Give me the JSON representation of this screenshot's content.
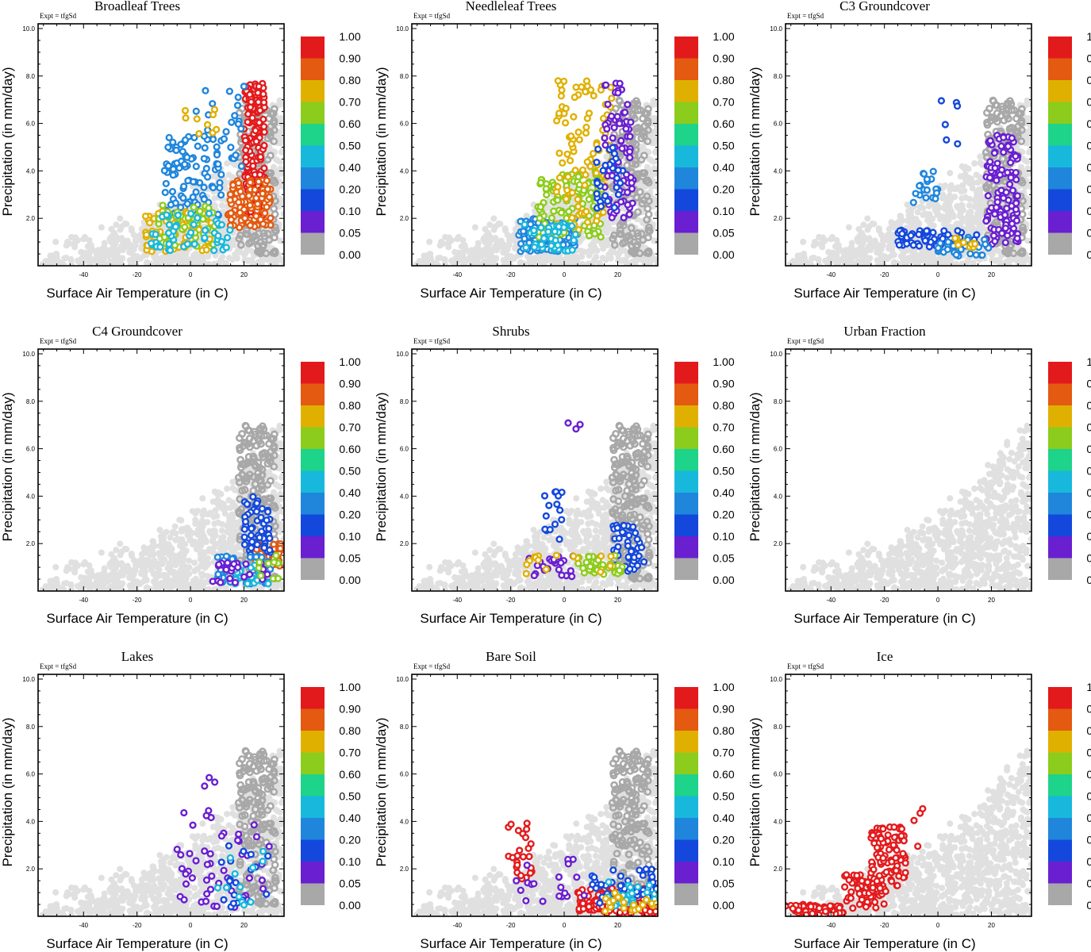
{
  "figure": {
    "expt_label": "Expt = tfgSd"
  },
  "colorbar": {
    "labels": [
      "1.00",
      "0.90",
      "0.80",
      "0.70",
      "0.60",
      "0.50",
      "0.40",
      "0.20",
      "0.10",
      "0.05",
      "0.00"
    ],
    "colors": [
      "#e31a1c",
      "#e35a10",
      "#e0b000",
      "#8ccc1c",
      "#1ed38a",
      "#18b8dc",
      "#1f86dc",
      "#1448dc",
      "#6a1fd0",
      "#a8a8a8"
    ]
  },
  "chart_data": [
    {
      "type": "scatter",
      "title": "Broadleaf Trees",
      "xlabel": "Surface Air Temperature (in C)",
      "ylabel": "Precipitation (in mm/day)",
      "xlim": [
        -57,
        35
      ],
      "ylim": [
        0,
        10.2
      ],
      "xticks": [
        -40,
        -20,
        0,
        20
      ],
      "yticks": [
        2.0,
        4.0,
        6.0,
        8.0,
        10.0
      ],
      "clusters": [
        {
          "color": "#e31a1c",
          "x": [
            20,
            28
          ],
          "y": [
            1.8,
            7.7
          ],
          "n": 180
        },
        {
          "color": "#e35a10",
          "x": [
            14,
            30
          ],
          "y": [
            1.6,
            3.6
          ],
          "n": 90
        },
        {
          "color": "#1f86dc",
          "x": [
            -10,
            12
          ],
          "y": [
            2.0,
            5.5
          ],
          "n": 90
        },
        {
          "color": "#e0b000",
          "x": [
            -17,
            8
          ],
          "y": [
            0.6,
            2.3
          ],
          "n": 90
        },
        {
          "color": "#8ccc1c",
          "x": [
            -12,
            10
          ],
          "y": [
            0.8,
            2.6
          ],
          "n": 50
        },
        {
          "color": "#18b8dc",
          "x": [
            -15,
            15
          ],
          "y": [
            0.6,
            2.2
          ],
          "n": 50
        },
        {
          "color": "#1f86dc",
          "x": [
            2,
            20
          ],
          "y": [
            4.0,
            7.8
          ],
          "n": 25
        },
        {
          "color": "#e0b000",
          "x": [
            -2,
            10
          ],
          "y": [
            5.5,
            7.0
          ],
          "n": 10
        }
      ]
    },
    {
      "type": "scatter",
      "title": "Needleleaf Trees",
      "xlabel": "Surface Air Temperature (in C)",
      "ylabel": "Precipitation (in mm/day)",
      "xlim": [
        -57,
        35
      ],
      "ylim": [
        0,
        10.2
      ],
      "xticks": [
        -40,
        -20,
        0,
        20
      ],
      "yticks": [
        2.0,
        4.0,
        6.0,
        8.0,
        10.0
      ],
      "clusters": [
        {
          "color": "#1f86dc",
          "x": [
            -17,
            5
          ],
          "y": [
            0.6,
            2.0
          ],
          "n": 120
        },
        {
          "color": "#8ccc1c",
          "x": [
            -10,
            15
          ],
          "y": [
            1.2,
            4.0
          ],
          "n": 130
        },
        {
          "color": "#e0b000",
          "x": [
            -3,
            18
          ],
          "y": [
            1.5,
            7.8
          ],
          "n": 100
        },
        {
          "color": "#6a1fd0",
          "x": [
            15,
            26
          ],
          "y": [
            2.0,
            7.7
          ],
          "n": 80
        },
        {
          "color": "#1448dc",
          "x": [
            12,
            22
          ],
          "y": [
            2.0,
            5.0
          ],
          "n": 30
        },
        {
          "color": "#18b8dc",
          "x": [
            -15,
            5
          ],
          "y": [
            0.6,
            1.8
          ],
          "n": 40
        }
      ]
    },
    {
      "type": "scatter",
      "title": "C3 Groundcover",
      "xlabel": "Surface Air Temperature (in C)",
      "ylabel": "Precipitation (in mm/day)",
      "xlim": [
        -57,
        35
      ],
      "ylim": [
        0,
        10.2
      ],
      "xticks": [
        -40,
        -20,
        0,
        20
      ],
      "yticks": [
        2.0,
        4.0,
        6.0,
        8.0,
        10.0
      ],
      "clusters": [
        {
          "color": "#6a1fd0",
          "x": [
            18,
            30
          ],
          "y": [
            0.8,
            5.5
          ],
          "n": 120
        },
        {
          "color": "#1448dc",
          "x": [
            -15,
            15
          ],
          "y": [
            0.8,
            1.5
          ],
          "n": 60
        },
        {
          "color": "#1f86dc",
          "x": [
            -10,
            0
          ],
          "y": [
            2.5,
            4.0
          ],
          "n": 20
        },
        {
          "color": "#1f86dc",
          "x": [
            0,
            20
          ],
          "y": [
            0.4,
            1.2
          ],
          "n": 30
        },
        {
          "color": "#e0b000",
          "x": [
            5,
            15
          ],
          "y": [
            0.6,
            1.2
          ],
          "n": 10
        },
        {
          "color": "#1448dc",
          "x": [
            0,
            8
          ],
          "y": [
            5.0,
            7.0
          ],
          "n": 6
        }
      ]
    },
    {
      "type": "scatter",
      "title": "C4 Groundcover",
      "xlabel": "Surface Air Temperature (in C)",
      "ylabel": "Precipitation (in mm/day)",
      "xlim": [
        -57,
        35
      ],
      "ylim": [
        0,
        10.2
      ],
      "xticks": [
        -40,
        -20,
        0,
        20
      ],
      "yticks": [
        2.0,
        4.0,
        6.0,
        8.0,
        10.0
      ],
      "clusters": [
        {
          "color": "#e35a10",
          "x": [
            22,
            34
          ],
          "y": [
            0.8,
            2.0
          ],
          "n": 60
        },
        {
          "color": "#1448dc",
          "x": [
            20,
            30
          ],
          "y": [
            1.5,
            4.0
          ],
          "n": 50
        },
        {
          "color": "#1f86dc",
          "x": [
            10,
            30
          ],
          "y": [
            0.3,
            1.5
          ],
          "n": 50
        },
        {
          "color": "#18b8dc",
          "x": [
            15,
            30
          ],
          "y": [
            0.3,
            1.2
          ],
          "n": 30
        },
        {
          "color": "#6a1fd0",
          "x": [
            8,
            30
          ],
          "y": [
            0.3,
            1.2
          ],
          "n": 25
        },
        {
          "color": "#8ccc1c",
          "x": [
            20,
            34
          ],
          "y": [
            0.5,
            1.5
          ],
          "n": 10
        }
      ]
    },
    {
      "type": "scatter",
      "title": "Shrubs",
      "xlabel": "Surface Air Temperature (in C)",
      "ylabel": "Precipitation (in mm/day)",
      "xlim": [
        -57,
        35
      ],
      "ylim": [
        0,
        10.2
      ],
      "xticks": [
        -40,
        -20,
        0,
        20
      ],
      "yticks": [
        2.0,
        4.0,
        6.0,
        8.0,
        10.0
      ],
      "clusters": [
        {
          "color": "#1448dc",
          "x": [
            18,
            30
          ],
          "y": [
            0.8,
            2.8
          ],
          "n": 50
        },
        {
          "color": "#8ccc1c",
          "x": [
            5,
            22
          ],
          "y": [
            0.7,
            1.5
          ],
          "n": 40
        },
        {
          "color": "#6a1fd0",
          "x": [
            -15,
            5
          ],
          "y": [
            0.6,
            1.5
          ],
          "n": 25
        },
        {
          "color": "#1448dc",
          "x": [
            -8,
            0
          ],
          "y": [
            2.0,
            4.5
          ],
          "n": 15
        },
        {
          "color": "#6a1fd0",
          "x": [
            0,
            6
          ],
          "y": [
            6.5,
            7.2
          ],
          "n": 3
        },
        {
          "color": "#e0b000",
          "x": [
            -15,
            18
          ],
          "y": [
            0.6,
            1.8
          ],
          "n": 15
        }
      ]
    },
    {
      "type": "scatter",
      "title": "Urban Fraction",
      "xlabel": "Surface Air Temperature (in C)",
      "ylabel": "Precipitation (in mm/day)",
      "xlim": [
        -57,
        35
      ],
      "ylim": [
        0,
        10.2
      ],
      "xticks": [
        -40,
        -20,
        0,
        20
      ],
      "yticks": [
        2.0,
        4.0,
        6.0,
        8.0,
        10.0
      ],
      "clusters": []
    },
    {
      "type": "scatter",
      "title": "Lakes",
      "xlabel": "Surface Air Temperature (in C)",
      "ylabel": "Precipitation (in mm/day)",
      "xlim": [
        -57,
        35
      ],
      "ylim": [
        0,
        10.2
      ],
      "xticks": [
        -40,
        -20,
        0,
        20
      ],
      "yticks": [
        2.0,
        4.0,
        6.0,
        8.0,
        10.0
      ],
      "clusters": [
        {
          "color": "#6a1fd0",
          "x": [
            -5,
            30
          ],
          "y": [
            0.3,
            4.5
          ],
          "n": 50
        },
        {
          "color": "#1448dc",
          "x": [
            10,
            30
          ],
          "y": [
            0.3,
            3.0
          ],
          "n": 20
        },
        {
          "color": "#18b8dc",
          "x": [
            10,
            30
          ],
          "y": [
            0.3,
            3.5
          ],
          "n": 12
        },
        {
          "color": "#6a1fd0",
          "x": [
            5,
            10
          ],
          "y": [
            5.0,
            6.0
          ],
          "n": 3
        }
      ]
    },
    {
      "type": "scatter",
      "title": "Bare Soil",
      "xlabel": "Surface Air Temperature (in C)",
      "ylabel": "Precipitation (in mm/day)",
      "xlim": [
        -57,
        35
      ],
      "ylim": [
        0,
        10.2
      ],
      "xticks": [
        -40,
        -20,
        0,
        20
      ],
      "yticks": [
        2.0,
        4.0,
        6.0,
        8.0,
        10.0
      ],
      "clusters": [
        {
          "color": "#e31a1c",
          "x": [
            5,
            35
          ],
          "y": [
            0.1,
            1.2
          ],
          "n": 150
        },
        {
          "color": "#e31a1c",
          "x": [
            -22,
            -12
          ],
          "y": [
            1.5,
            4.0
          ],
          "n": 25
        },
        {
          "color": "#1448dc",
          "x": [
            10,
            35
          ],
          "y": [
            0.5,
            2.0
          ],
          "n": 50
        },
        {
          "color": "#18b8dc",
          "x": [
            15,
            35
          ],
          "y": [
            0.3,
            1.5
          ],
          "n": 25
        },
        {
          "color": "#e0b000",
          "x": [
            15,
            35
          ],
          "y": [
            0.2,
            1.0
          ],
          "n": 20
        },
        {
          "color": "#6a1fd0",
          "x": [
            -18,
            10
          ],
          "y": [
            0.5,
            2.5
          ],
          "n": 20
        }
      ]
    },
    {
      "type": "scatter",
      "title": "Ice",
      "xlabel": "Surface Air Temperature (in C)",
      "ylabel": "Precipitation (in mm/day)",
      "xlim": [
        -57,
        35
      ],
      "ylim": [
        0,
        10.2
      ],
      "xticks": [
        -40,
        -20,
        0,
        20
      ],
      "yticks": [
        2.0,
        4.0,
        6.0,
        8.0,
        10.0
      ],
      "clusters": [
        {
          "color": "#e31a1c",
          "x": [
            -57,
            -35
          ],
          "y": [
            0.05,
            0.5
          ],
          "n": 60
        },
        {
          "color": "#e31a1c",
          "x": [
            -35,
            -20
          ],
          "y": [
            0.3,
            1.8
          ],
          "n": 70
        },
        {
          "color": "#e31a1c",
          "x": [
            -25,
            -12
          ],
          "y": [
            1.0,
            3.8
          ],
          "n": 90
        },
        {
          "color": "#e31a1c",
          "x": [
            -10,
            -5
          ],
          "y": [
            2.5,
            4.7
          ],
          "n": 4
        }
      ]
    }
  ]
}
